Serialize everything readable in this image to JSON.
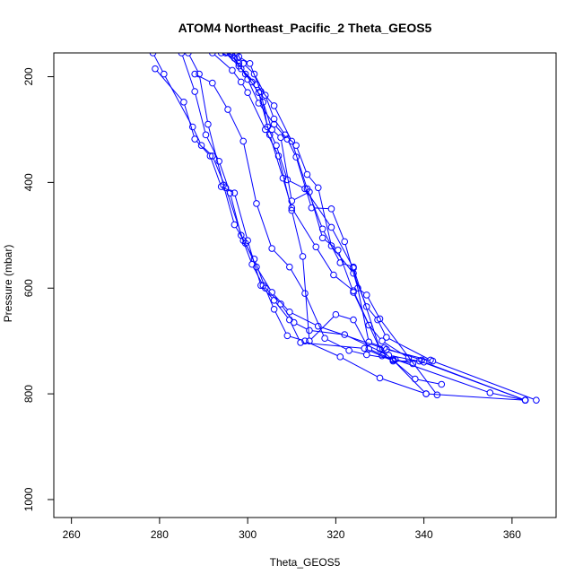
{
  "chart_data": {
    "type": "line",
    "title": "ATOM4 Northeast_Pacific_2 Theta_GEOS5",
    "xlabel": "Theta_GEOS5",
    "ylabel": "Pressure (mbar)",
    "xlim": [
      256,
      370
    ],
    "ylim": [
      1034,
      155
    ],
    "y_inverted": true,
    "x_ticks": [
      260,
      280,
      300,
      320,
      340,
      360
    ],
    "y_ticks": [
      200,
      400,
      600,
      800,
      1000
    ],
    "grid": false,
    "legend": "none",
    "marker": "open-circle",
    "color": "#0000ff",
    "series": [
      {
        "x": [
          278.5,
          281.0,
          287.5,
          289.5,
          292.0,
          295.0,
          299.0,
          301.5,
          304.0,
          306.0,
          309.0,
          313.0,
          321.0,
          330.0,
          340.5,
          363.0
        ],
        "y": [
          155,
          195,
          295,
          330,
          350,
          410,
          510,
          545,
          600,
          640,
          690,
          700,
          730,
          770,
          800,
          812
        ]
      },
      {
        "x": [
          285.0,
          288.0,
          290.5,
          293.5,
          296.0,
          298.5,
          301.0,
          303.5,
          307.5,
          310.5,
          314.0,
          322.0,
          332.0,
          340.0,
          363.0
        ],
        "y": [
          155,
          228,
          310,
          360,
          420,
          500,
          555,
          595,
          630,
          665,
          680,
          688,
          727,
          740,
          812
        ]
      },
      {
        "x": [
          286.5,
          289.0,
          291.0,
          294.5,
          297.0,
          299.5,
          302.0,
          305.5,
          309.5,
          316.0,
          331.5,
          342.0,
          365.5
        ],
        "y": [
          155,
          195,
          290,
          405,
          480,
          515,
          560,
          608,
          645,
          672,
          716,
          738,
          812
        ]
      },
      {
        "x": [
          279.0,
          285.5,
          288.0,
          291.5,
          294.0,
          297.0,
          300.0,
          303.0,
          306.0,
          309.5,
          312.0,
          326.5,
          333.0,
          339.0,
          363.0
        ],
        "y": [
          185,
          248,
          318,
          350,
          408,
          420,
          510,
          595,
          623,
          660,
          703,
          714,
          738,
          738,
          812
        ]
      },
      {
        "x": [
          288.0,
          292.0,
          295.5,
          299.0,
          302.0,
          305.5,
          309.5,
          313.0,
          317.5,
          323.0,
          327.0,
          333.5,
          355.0,
          363.0
        ],
        "y": [
          195,
          212,
          262,
          322,
          440,
          525,
          560,
          610,
          695,
          718,
          726,
          735,
          798,
          812
        ]
      },
      {
        "x": [
          292.0,
          296.5,
          298.5,
          300.0,
          304.0,
          307.0,
          310.0,
          312.5,
          314.0,
          320.0,
          324.0,
          327.5,
          333.0,
          340.5
        ],
        "y": [
          155,
          188,
          210,
          230,
          300,
          350,
          453,
          540,
          700,
          650,
          660,
          715,
          736,
          800
        ]
      },
      {
        "x": [
          294.0,
          297.0,
          299.5,
          302.5,
          305.0,
          308.0,
          310.0,
          315.5,
          319.5,
          324.0,
          330.0,
          338.0,
          344.0
        ],
        "y": [
          155,
          165,
          195,
          230,
          310,
          392,
          448,
          522,
          575,
          605,
          715,
          772,
          782
        ]
      },
      {
        "x": [
          295.0,
          298.0,
          300.5,
          303.0,
          304.5,
          306.5,
          309.0,
          313.0,
          319.0,
          324.0,
          330.5,
          333.0,
          337.5
        ],
        "y": [
          155,
          162,
          175,
          228,
          295,
          330,
          395,
          412,
          485,
          562,
          728,
          734,
          743
        ]
      },
      {
        "x": [
          296.0,
          298.5,
          301.0,
          303.5,
          305.5,
          307.5,
          310.0,
          314.0,
          317.0,
          320.5,
          324.0,
          327.5,
          330.5,
          336.5
        ],
        "y": [
          155,
          185,
          210,
          248,
          300,
          315,
          435,
          418,
          505,
          528,
          608,
          670,
          700,
          732
        ]
      },
      {
        "x": [
          297.5,
          299.0,
          301.5,
          304.0,
          306.0,
          308.5,
          311.0,
          313.5,
          316.0,
          319.0,
          324.0,
          327.0,
          329.5,
          331.5,
          341.5
        ],
        "y": [
          155,
          175,
          195,
          235,
          280,
          310,
          330,
          385,
          410,
          520,
          572,
          635,
          660,
          693,
          736
        ]
      },
      {
        "x": [
          296.5,
          298.0,
          300.0,
          302.5,
          306.0,
          309.0,
          311.0,
          314.5,
          319.0,
          322.0,
          325.0,
          327.0,
          330.0,
          343.0
        ],
        "y": [
          160,
          175,
          205,
          250,
          290,
          318,
          352,
          448,
          450,
          512,
          600,
          613,
          658,
          802
        ]
      },
      {
        "x": [
          295.0,
          298.0,
          302.0,
          306.0,
          310.0,
          313.5,
          317.0,
          321.0,
          324.0,
          327.5,
          331.0,
          339.5
        ],
        "y": [
          155,
          180,
          215,
          255,
          322,
          412,
          488,
          552,
          560,
          702,
          713,
          736
        ]
      }
    ]
  }
}
